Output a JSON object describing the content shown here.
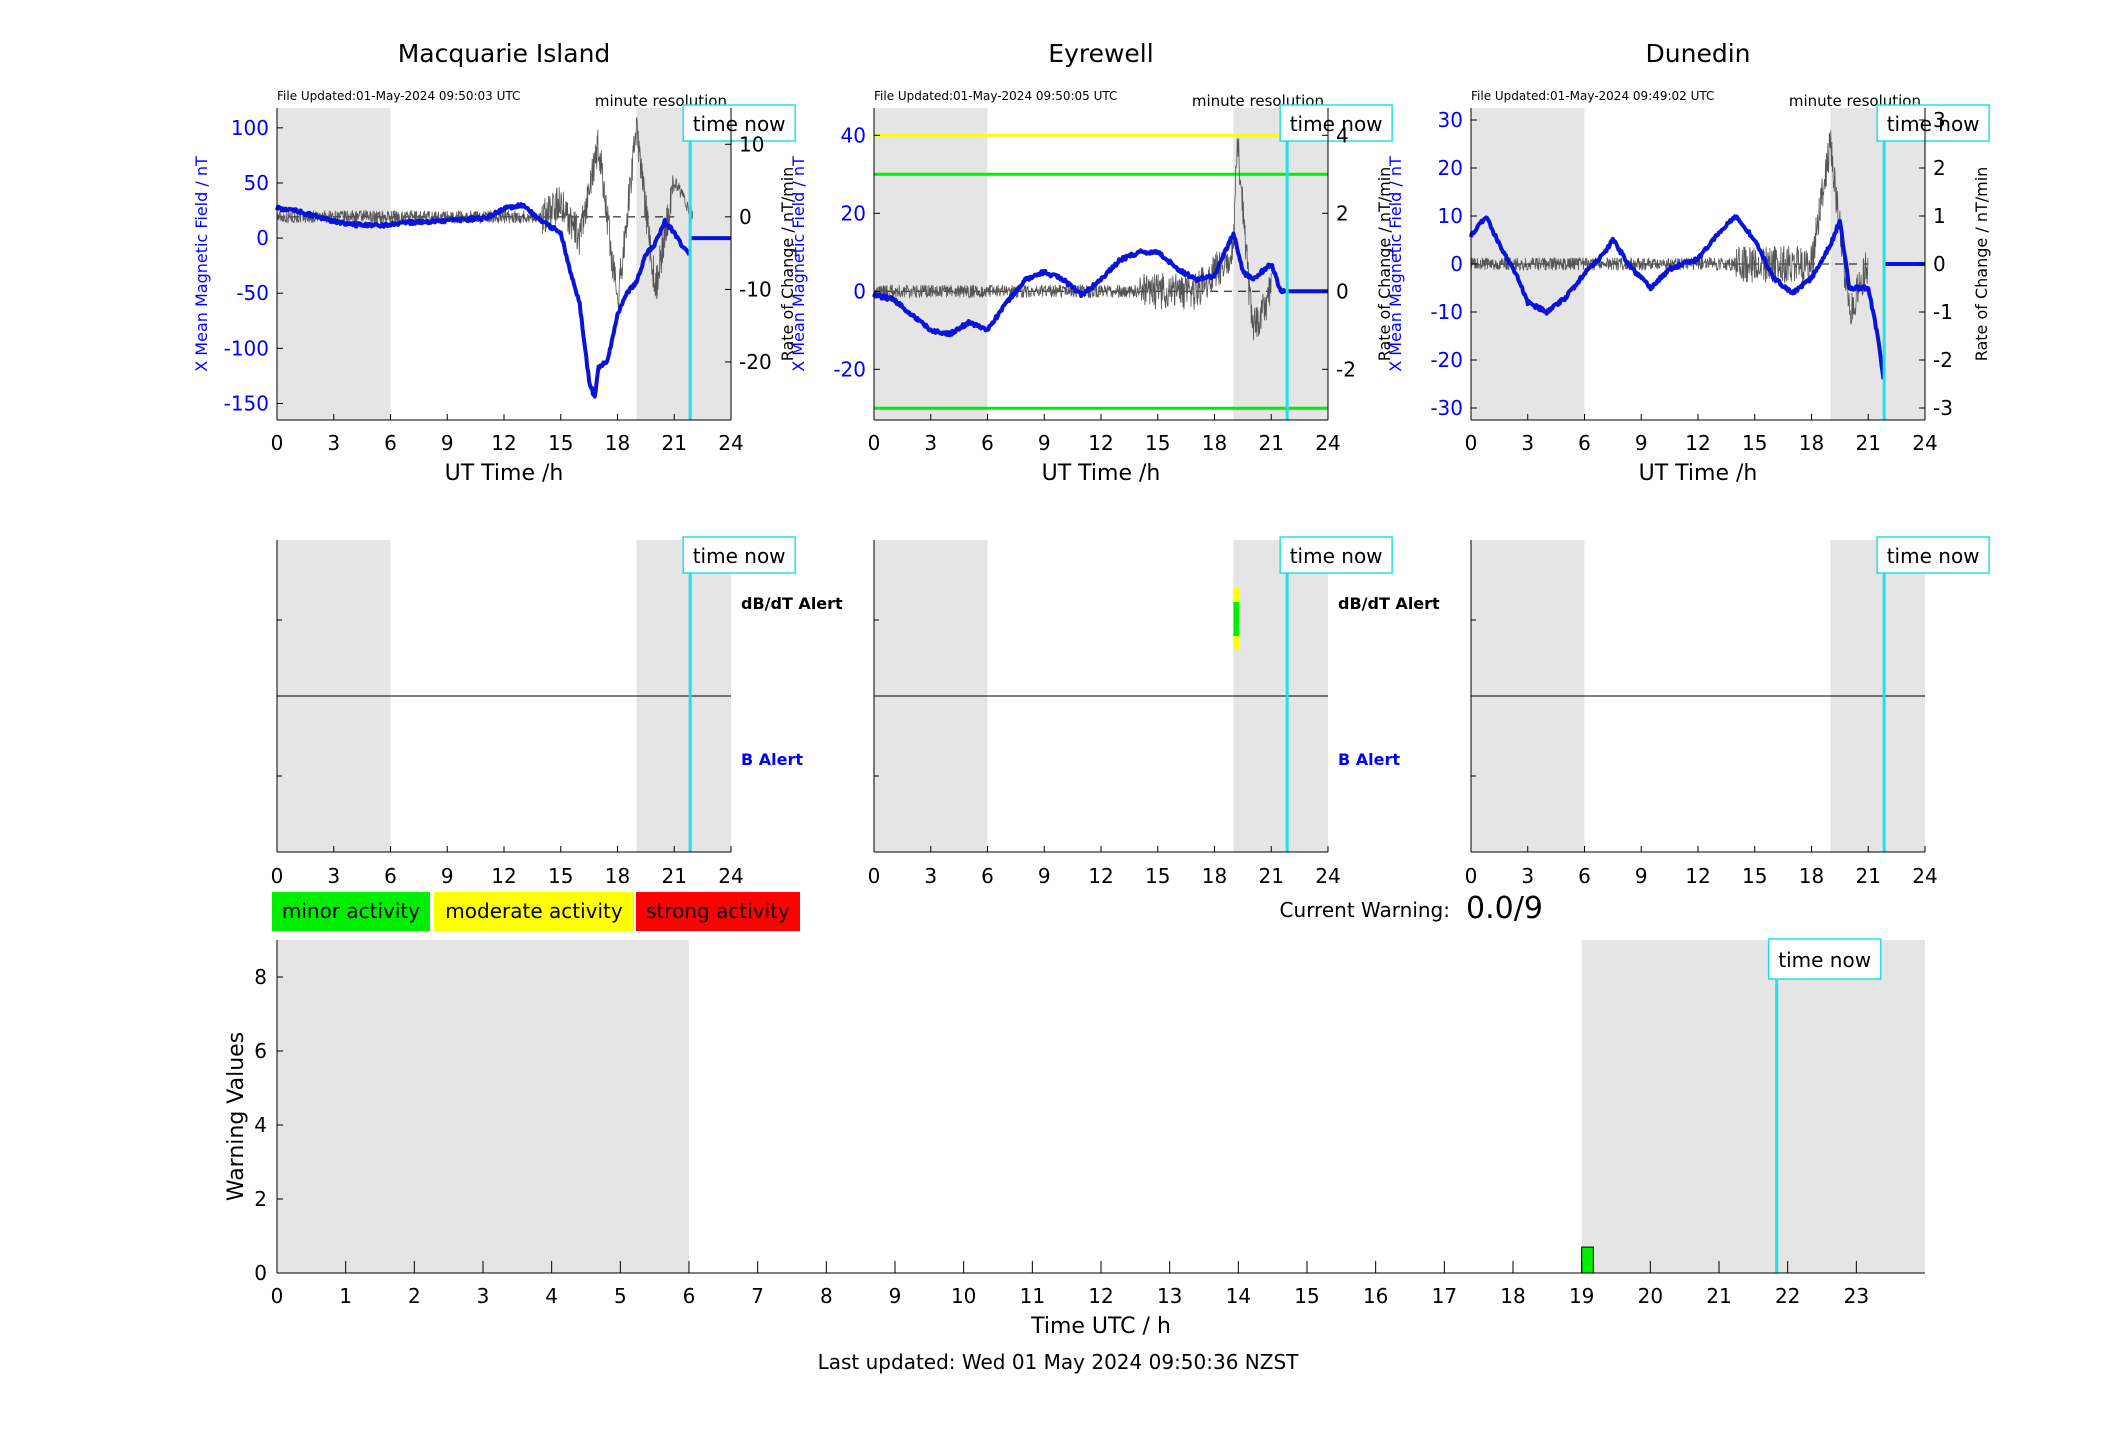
{
  "figure": {
    "last_updated": "Last updated: Wed 01 May 2024 09:50:36 NZST",
    "current_warning_label": "Current Warning:",
    "current_warning_value": "0.0/9"
  },
  "common": {
    "time_now_label": "time now",
    "minute_resolution_label": "minute resolution",
    "ut_xlabel": "UT Time /h",
    "left_ylabel": "X Mean Magnetic Field / nT",
    "right_ylabel": "Rate of Change / nT/min",
    "dbdt_alert_label": "dB/dT Alert",
    "b_alert_label": "B Alert",
    "x_ticks": [
      0,
      3,
      6,
      9,
      12,
      15,
      18,
      21,
      24
    ],
    "night_shading_hours": [
      [
        0,
        6
      ],
      [
        19,
        24
      ]
    ],
    "time_now_hour": 21.84
  },
  "colors": {
    "field_line": "#0a14d9",
    "rate_line": "#555555",
    "time_now": "#22e0e8",
    "shade": "#e5e5e5",
    "minor": "#00ee00",
    "moderate": "#ffff00",
    "strong": "#ff0000",
    "axis_blue": "#0000ff"
  },
  "legend": [
    {
      "label": "minor activity",
      "color": "#00ee00"
    },
    {
      "label": "moderate activity",
      "color": "#ffff00"
    },
    {
      "label": "strong activity",
      "color": "#ff0000"
    }
  ],
  "chart_data": [
    {
      "type": "line",
      "title": "Macquarie Island",
      "file_updated": "File Updated:01-May-2024 09:50:03 UTC",
      "xlabel": "UT Time /h",
      "xlim": [
        0,
        24
      ],
      "ylabel_left": "X Mean Magnetic Field / nT",
      "ylim_left": [
        -165,
        118
      ],
      "yticks_left": [
        -150,
        -100,
        -50,
        0,
        50,
        100
      ],
      "ylabel_right": "Rate of Change / nT/min",
      "ylim_right": [
        -28,
        15
      ],
      "yticks_right": [
        -20,
        -10,
        0,
        10
      ],
      "series": [
        {
          "values": [
            [
              0,
              27
            ],
            [
              1,
              25
            ],
            [
              2,
              20
            ],
            [
              3,
              15
            ],
            [
              4,
              12
            ],
            [
              5,
              12
            ],
            [
              6,
              12
            ],
            [
              7,
              14
            ],
            [
              8,
              15
            ],
            [
              9,
              16
            ],
            [
              10,
              17
            ],
            [
              11,
              18
            ],
            [
              12,
              27
            ],
            [
              13,
              30
            ],
            [
              14,
              15
            ],
            [
              15,
              5
            ],
            [
              15.5,
              -30
            ],
            [
              16,
              -60
            ],
            [
              16.5,
              -130
            ],
            [
              16.8,
              -145
            ],
            [
              17,
              -118
            ],
            [
              17.5,
              -110
            ],
            [
              18,
              -70
            ],
            [
              18.5,
              -50
            ],
            [
              19,
              -40
            ],
            [
              19.5,
              -15
            ],
            [
              20,
              -5
            ],
            [
              20.5,
              15
            ],
            [
              21,
              5
            ],
            [
              21.5,
              -10
            ],
            [
              21.84,
              -15
            ],
            [
              24,
              0
            ]
          ]
        },
        {
          "values": [
            [
              0,
              0
            ],
            [
              2,
              0
            ],
            [
              4,
              0
            ],
            [
              6,
              0
            ],
            [
              9,
              0
            ],
            [
              12,
              0
            ],
            [
              14,
              0
            ],
            [
              15,
              2
            ],
            [
              16,
              -3
            ],
            [
              17,
              10
            ],
            [
              18,
              -12
            ],
            [
              19,
              12
            ],
            [
              20,
              -10
            ],
            [
              21,
              5
            ],
            [
              22,
              0
            ]
          ]
        }
      ],
      "dbdt_alerts": [],
      "b_alerts": []
    },
    {
      "type": "line",
      "title": "Eyrewell",
      "file_updated": "File Updated:01-May-2024 09:50:05 UTC",
      "xlabel": "UT Time /h",
      "xlim": [
        0,
        24
      ],
      "ylabel_left": "X Mean Magnetic Field / nT",
      "ylim_left": [
        -33,
        47
      ],
      "yticks_left": [
        -20,
        0,
        20,
        40
      ],
      "ylabel_right": "Rate of Change / nT/min",
      "ylim_right": [
        -3.3,
        4.7
      ],
      "yticks_right": [
        -2,
        0,
        2,
        4
      ],
      "thresholds": [
        {
          "value": 40,
          "color": "#ffff00"
        },
        {
          "value": 30,
          "color": "#00ee00"
        },
        {
          "value": -30,
          "color": "#00ee00"
        }
      ],
      "series": [
        {
          "values": [
            [
              0,
              -1
            ],
            [
              1,
              -2
            ],
            [
              2,
              -6
            ],
            [
              3,
              -10
            ],
            [
              4,
              -11
            ],
            [
              5,
              -8
            ],
            [
              6,
              -10
            ],
            [
              7,
              -3
            ],
            [
              8,
              3
            ],
            [
              9,
              5
            ],
            [
              10,
              3
            ],
            [
              11,
              -1
            ],
            [
              12,
              3
            ],
            [
              13,
              8
            ],
            [
              14,
              10
            ],
            [
              15,
              10
            ],
            [
              16,
              6
            ],
            [
              17,
              3
            ],
            [
              18,
              4
            ],
            [
              19,
              15
            ],
            [
              19.5,
              5
            ],
            [
              20,
              3
            ],
            [
              21,
              7
            ],
            [
              21.5,
              0
            ],
            [
              24,
              0
            ]
          ]
        },
        {
          "values": [
            [
              0,
              0
            ],
            [
              2,
              0
            ],
            [
              4,
              0
            ],
            [
              6,
              0
            ],
            [
              9,
              0
            ],
            [
              12,
              0
            ],
            [
              15,
              0
            ],
            [
              17,
              0
            ],
            [
              19,
              1
            ],
            [
              19.2,
              4
            ],
            [
              20,
              -1
            ],
            [
              21,
              0
            ]
          ]
        }
      ],
      "dbdt_alerts": [
        {
          "start": 19.0,
          "end": 19.3,
          "level": "minor"
        }
      ],
      "b_alerts": []
    },
    {
      "type": "line",
      "title": "Dunedin",
      "file_updated": "File Updated:01-May-2024 09:49:02 UTC",
      "xlabel": "UT Time /h",
      "xlim": [
        0,
        24
      ],
      "ylabel_left": "X Mean Magnetic Field / nT",
      "ylim_left": [
        -32.5,
        32.5
      ],
      "yticks_left": [
        -30,
        -20,
        -10,
        0,
        10,
        20,
        30
      ],
      "ylabel_right": "Rate of Change / nT/min",
      "ylim_right": [
        -3.25,
        3.25
      ],
      "yticks_right": [
        -3,
        -2,
        -1,
        0,
        1,
        2,
        3
      ],
      "series": [
        {
          "values": [
            [
              0,
              6
            ],
            [
              0.8,
              10
            ],
            [
              1.5,
              4
            ],
            [
              2.5,
              -3
            ],
            [
              3,
              -8
            ],
            [
              4,
              -10
            ],
            [
              5,
              -7
            ],
            [
              6,
              -2
            ],
            [
              7,
              2
            ],
            [
              7.5,
              5
            ],
            [
              8.5,
              -1
            ],
            [
              9.5,
              -5
            ],
            [
              10.5,
              -1
            ],
            [
              12,
              1
            ],
            [
              13,
              6
            ],
            [
              14,
              10
            ],
            [
              15,
              5
            ],
            [
              16,
              -3
            ],
            [
              17,
              -6
            ],
            [
              18,
              -3
            ],
            [
              19,
              4
            ],
            [
              19.5,
              9
            ],
            [
              20,
              -5
            ],
            [
              21,
              -5
            ],
            [
              21.5,
              -15
            ],
            [
              21.84,
              -25
            ],
            [
              22,
              0
            ],
            [
              24,
              0
            ]
          ]
        },
        {
          "values": [
            [
              0,
              0
            ],
            [
              3,
              0
            ],
            [
              6,
              0
            ],
            [
              9,
              0
            ],
            [
              12,
              0
            ],
            [
              15,
              0
            ],
            [
              18,
              0
            ],
            [
              19,
              2.5
            ],
            [
              20,
              -1
            ],
            [
              21,
              0
            ]
          ]
        }
      ],
      "dbdt_alerts": [],
      "b_alerts": []
    },
    {
      "type": "bar",
      "xlabel": "Time UTC / h",
      "ylabel": "Warning Values",
      "xlim": [
        0,
        24
      ],
      "xticks": [
        0,
        1,
        2,
        3,
        4,
        5,
        6,
        7,
        8,
        9,
        10,
        11,
        12,
        13,
        14,
        15,
        16,
        17,
        18,
        19,
        20,
        21,
        22,
        23
      ],
      "ylim": [
        0,
        9
      ],
      "yticks": [
        0,
        2,
        4,
        6,
        8
      ],
      "bars": [
        {
          "start": 19.0,
          "end": 19.17,
          "value": 0.7,
          "level": "minor"
        }
      ]
    }
  ]
}
